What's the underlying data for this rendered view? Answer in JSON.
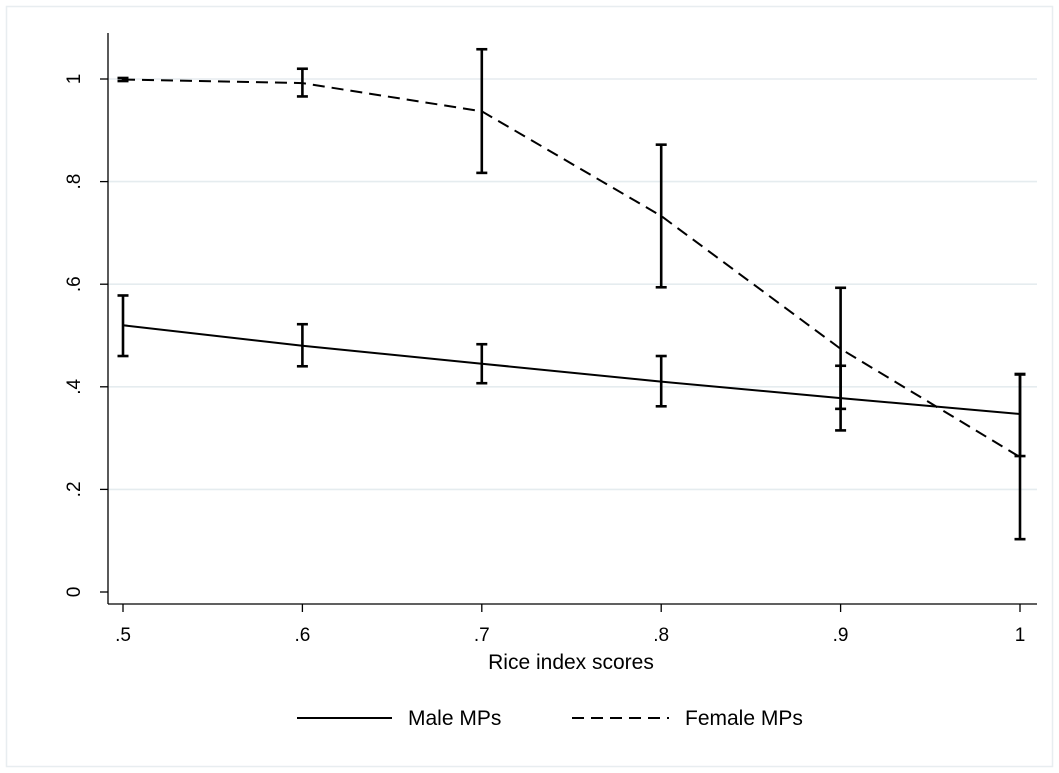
{
  "chart_data": {
    "type": "line",
    "xlabel": "Rice index scores",
    "ylabel": "",
    "title": "",
    "xlim": [
      0.5,
      1.0
    ],
    "ylim": [
      0,
      1
    ],
    "x_ticks": [
      ".5",
      ".6",
      ".7",
      ".8",
      ".9",
      "1"
    ],
    "y_ticks": [
      "0",
      ".2",
      ".4",
      ".6",
      ".8",
      "1"
    ],
    "grid": true,
    "legend_position": "bottom",
    "x": [
      0.5,
      0.6,
      0.7,
      0.8,
      0.9,
      1.0
    ],
    "series": [
      {
        "name": "Male MPs",
        "line_style": "solid",
        "values": [
          0.52,
          0.48,
          0.445,
          0.41,
          0.378,
          0.347
        ],
        "ci_low": [
          0.46,
          0.44,
          0.407,
          0.362,
          0.315,
          0.265
        ],
        "ci_high": [
          0.578,
          0.522,
          0.483,
          0.46,
          0.441,
          0.425
        ]
      },
      {
        "name": "Female MPs",
        "line_style": "dashed",
        "values": [
          0.999,
          0.992,
          0.937,
          0.733,
          0.474,
          0.263
        ],
        "ci_low": [
          0.996,
          0.966,
          0.817,
          0.594,
          0.357,
          0.103
        ],
        "ci_high": [
          1.002,
          1.02,
          1.058,
          0.872,
          0.593,
          0.424
        ]
      }
    ],
    "colors": {
      "line": "#000000",
      "grid": "#e5ecef",
      "background": "#ffffff",
      "border": "#e8edf0"
    }
  }
}
